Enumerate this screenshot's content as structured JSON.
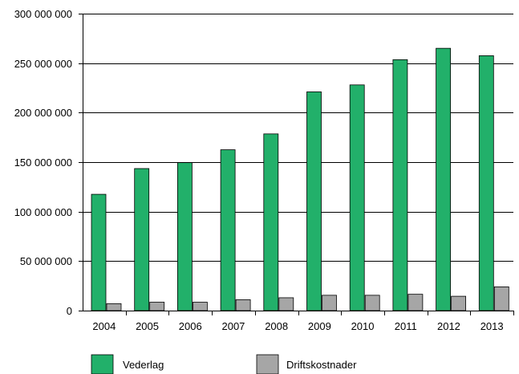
{
  "chart_data": {
    "type": "bar",
    "title": "",
    "xlabel": "",
    "ylabel": "",
    "categories": [
      "2004",
      "2005",
      "2006",
      "2007",
      "2008",
      "2009",
      "2010",
      "2011",
      "2012",
      "2013"
    ],
    "series": [
      {
        "name": "Vederlag",
        "color": "#22b06a",
        "values": [
          117500000,
          143500000,
          149500000,
          162500000,
          178500000,
          221000000,
          228000000,
          253500000,
          265000000,
          257500000
        ]
      },
      {
        "name": "Driftskostnader",
        "color": "#a6a6a6",
        "values": [
          7000000,
          8500000,
          8500000,
          11000000,
          13000000,
          15500000,
          15500000,
          16500000,
          14500000,
          24000000
        ]
      }
    ],
    "ylim": [
      0,
      300000000
    ],
    "yticks": [
      0,
      50000000,
      100000000,
      150000000,
      200000000,
      250000000,
      300000000
    ],
    "ytick_labels": [
      "0",
      "50 000 000",
      "100 000 000",
      "150 000 000",
      "200 000 000",
      "250 000 000",
      "300 000 000"
    ],
    "grid": "horizontal",
    "legend_position": "bottom"
  }
}
